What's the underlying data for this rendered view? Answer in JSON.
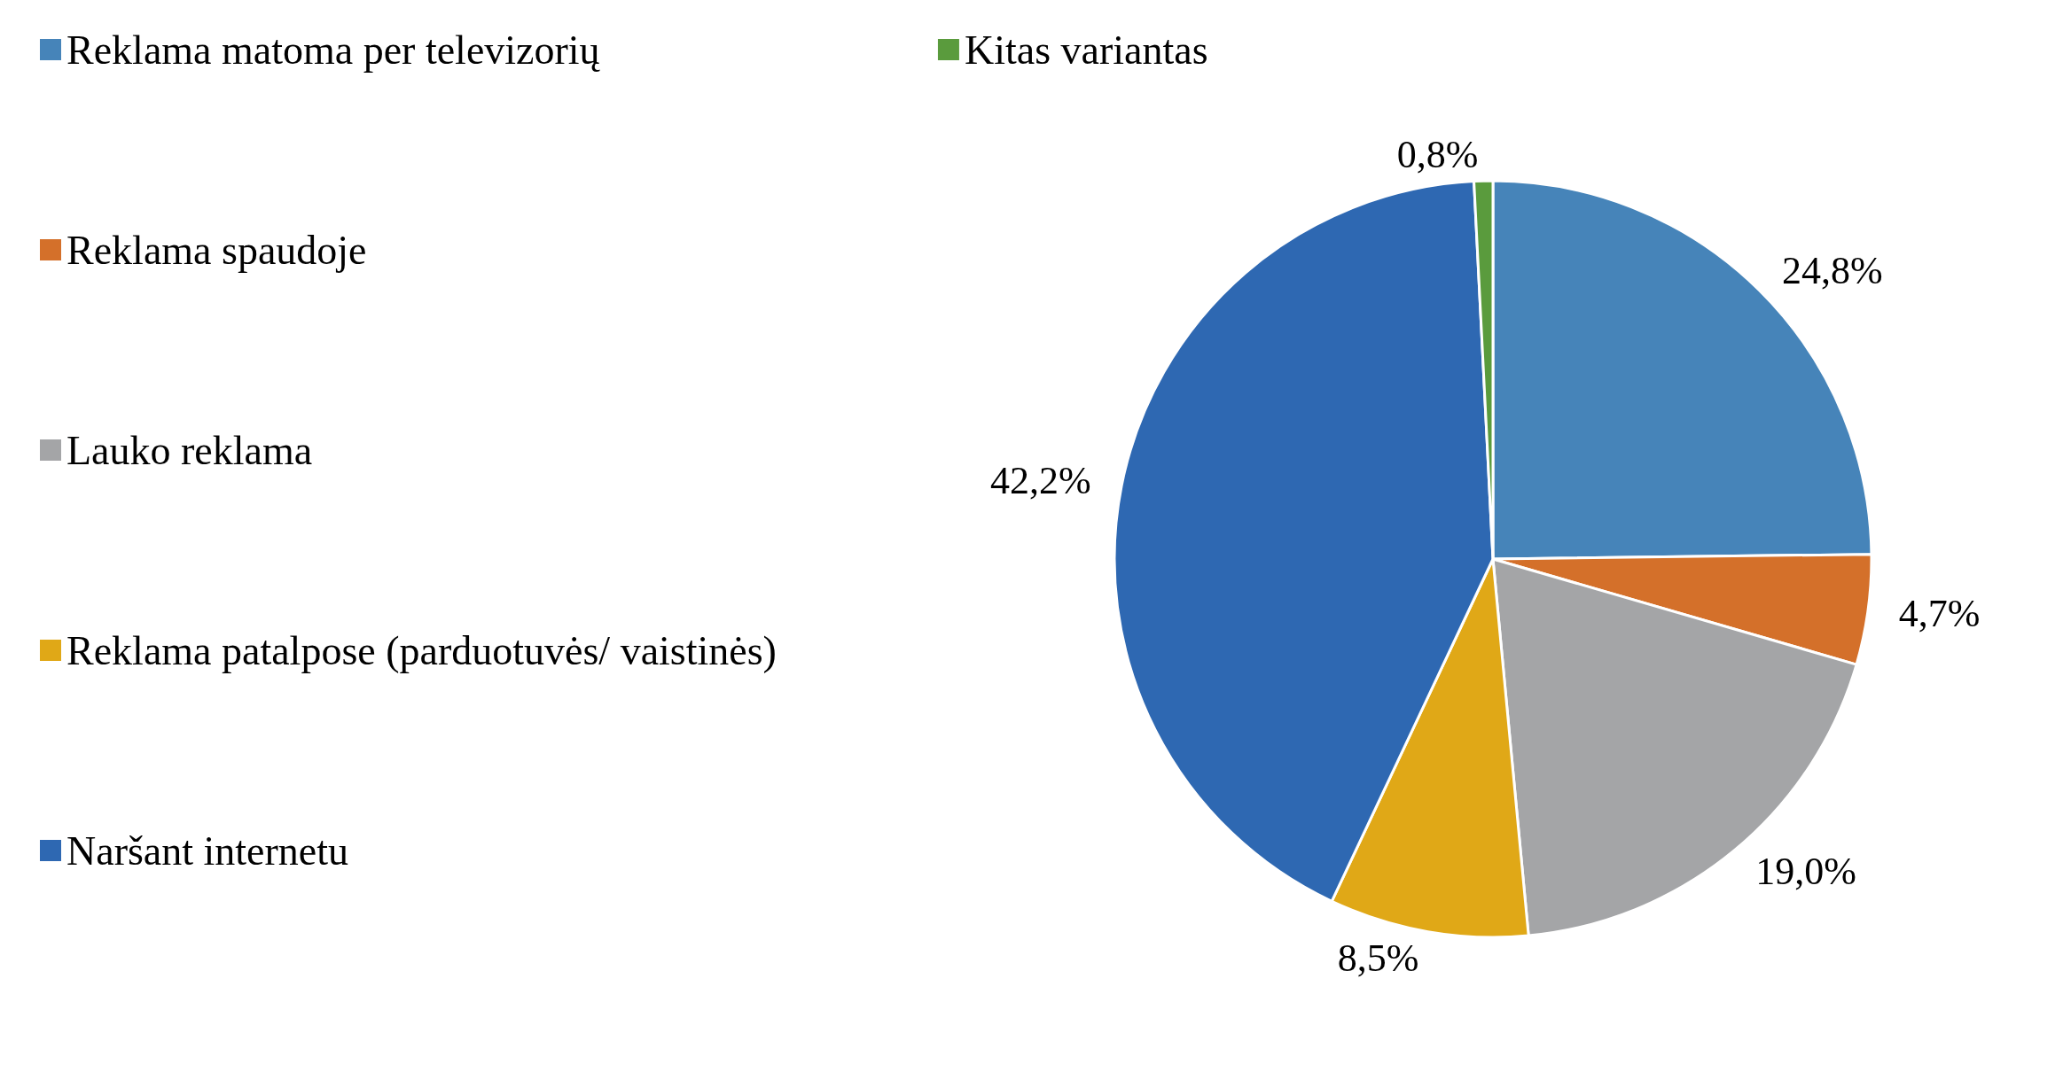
{
  "chart_data": {
    "type": "pie",
    "categories": [
      "Reklama matoma per televizorių",
      "Reklama spaudoje",
      "Lauko reklama",
      "Reklama patalpose (parduotuvės/ vaistinės)",
      "Naršant internetu",
      "Kitas variantas"
    ],
    "values": [
      24.8,
      4.7,
      19.0,
      8.5,
      42.2,
      0.8
    ],
    "value_labels": [
      "24,8%",
      "4,7%",
      "19,0%",
      "8,5%",
      "42,2%",
      "0,8%"
    ],
    "colors": [
      "#4684b9",
      "#d4702a",
      "#a4a5a7",
      "#e0a817",
      "#2e68b2",
      "#5a9b3d"
    ],
    "legend": "left"
  }
}
